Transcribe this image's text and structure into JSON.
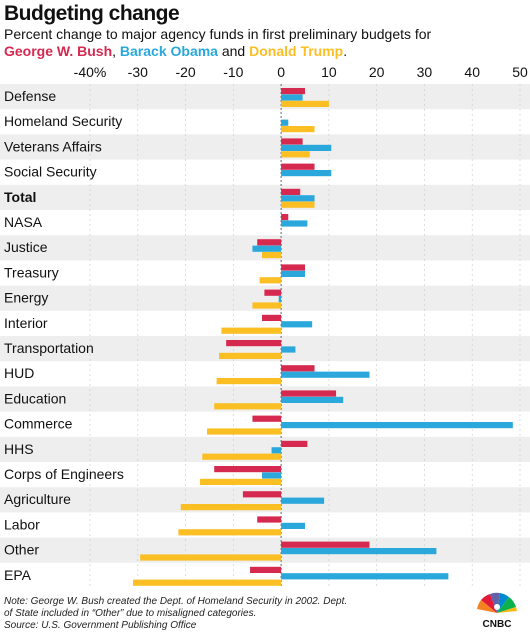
{
  "header": {
    "title": "Budgeting change",
    "subtitle_prefix": "Percent change to major agency funds in first preliminary budgets for",
    "and_text": "and",
    "period": "."
  },
  "footer": {
    "note_line1": "Note: George W. Bush created the Dept. of Homeland Security in 2002. Dept.",
    "note_line2": "of State included in “Other” due to misaligned categories.",
    "source": "Source: U.S. Government Publishing Office",
    "logo_text": "CNBC"
  },
  "colors": {
    "bush": "#d6294f",
    "obama": "#2aa8db",
    "trump": "#fbbf24",
    "stripe": "#eeeeee"
  },
  "chart_data": {
    "type": "bar",
    "orientation": "horizontal",
    "title": "Budgeting change",
    "categories": [
      "Defense",
      "Homeland Security",
      "Veterans Affairs",
      "Social Security",
      "Total",
      "NASA",
      "Justice",
      "Treasury",
      "Energy",
      "Interior",
      "Transportation",
      "HUD",
      "Education",
      "Commerce",
      "HHS",
      "Corps of Engineers",
      "Agriculture",
      "Labor",
      "Other",
      "EPA"
    ],
    "bold_categories": [
      "Total"
    ],
    "series": [
      {
        "name": "George W. Bush",
        "values": [
          5,
          null,
          4.5,
          7,
          4,
          1.5,
          -5,
          5,
          -3.5,
          -4,
          -11.5,
          7,
          11.5,
          -6,
          5.5,
          -14,
          -8,
          -5,
          18.5,
          -6.5
        ]
      },
      {
        "name": "Barack Obama",
        "values": [
          4.5,
          1.5,
          10.5,
          10.5,
          7,
          5.5,
          -6,
          5,
          -0.5,
          6.5,
          3,
          18.5,
          13,
          48.5,
          -2,
          -4,
          9,
          5,
          32.5,
          35
        ]
      },
      {
        "name": "Donald Trump",
        "values": [
          10,
          7,
          6,
          null,
          7,
          null,
          -4,
          -4.5,
          -6,
          -12.5,
          -13,
          -13.5,
          -14,
          -15.5,
          -16.5,
          -17,
          -21,
          -21.5,
          -29.5,
          -31
        ]
      }
    ],
    "xlim": [
      -40,
      50
    ],
    "xticks": [
      -40,
      -30,
      -20,
      -10,
      0,
      10,
      20,
      30,
      40,
      50
    ],
    "xtick_labels": [
      "-40%",
      "-30",
      "-20",
      "-10",
      "0",
      "10",
      "20",
      "30",
      "40",
      "50"
    ],
    "grid": true,
    "legend": "inline-subtitle"
  }
}
